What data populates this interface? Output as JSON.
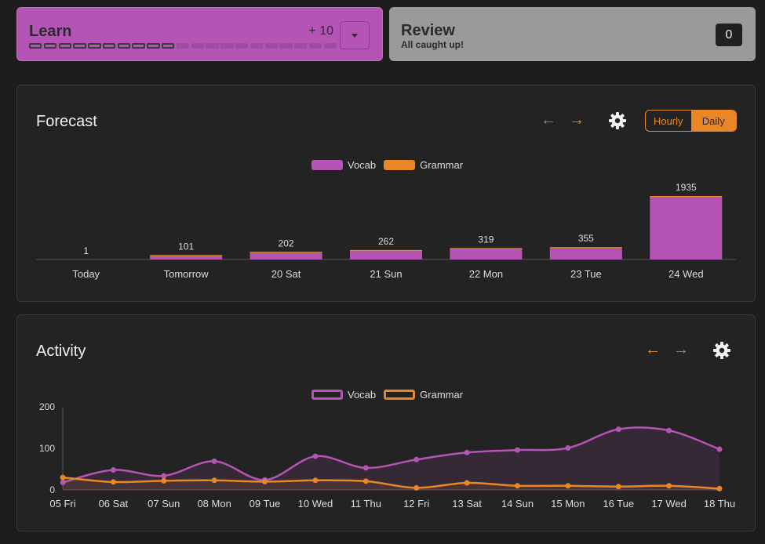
{
  "learn": {
    "title": "Learn",
    "count": "+ 10",
    "segments_total": 21,
    "segments_done": 10
  },
  "review": {
    "title": "Review",
    "subtitle": "All caught up!",
    "count": "0"
  },
  "forecast": {
    "title": "Forecast",
    "toggle": {
      "hourly": "Hourly",
      "daily": "Daily",
      "selected": "Daily"
    },
    "legend": {
      "vocab": "Vocab",
      "grammar": "Grammar"
    }
  },
  "activity": {
    "title": "Activity",
    "legend": {
      "vocab": "Vocab",
      "grammar": "Grammar"
    }
  },
  "colors": {
    "vocab": "#b455b6",
    "grammar": "#e98726"
  },
  "chart_data": [
    {
      "id": "forecast",
      "type": "bar",
      "title": "Forecast",
      "categories": [
        "Today",
        "Tomorrow",
        "20 Sat",
        "21 Sun",
        "22 Mon",
        "23 Tue",
        "24 Wed"
      ],
      "totals": [
        1,
        101,
        202,
        262,
        319,
        355,
        1935
      ],
      "series": [
        {
          "name": "Vocab",
          "values": [
            1,
            98,
            197,
            255,
            310,
            343,
            1900
          ]
        },
        {
          "name": "Grammar",
          "values": [
            0,
            3,
            5,
            7,
            9,
            12,
            35
          ]
        }
      ],
      "stacked": true,
      "ylim": [
        0,
        1935
      ]
    },
    {
      "id": "activity",
      "type": "area",
      "title": "Activity",
      "categories": [
        "05 Fri",
        "06 Sat",
        "07 Sun",
        "08 Mon",
        "09 Tue",
        "10 Wed",
        "11 Thu",
        "12 Fri",
        "13 Sat",
        "14 Sun",
        "15 Mon",
        "16 Tue",
        "17 Wed",
        "18 Thu"
      ],
      "series": [
        {
          "name": "Vocab",
          "values": [
            18,
            48,
            34,
            69,
            24,
            81,
            53,
            73,
            90,
            96,
            101,
            146,
            143,
            98
          ]
        },
        {
          "name": "Grammar",
          "values": [
            30,
            19,
            22,
            23,
            20,
            23,
            21,
            5,
            17,
            10,
            10,
            8,
            10,
            3
          ]
        }
      ],
      "yticks": [
        0,
        100,
        200
      ],
      "ylim": [
        0,
        200
      ]
    }
  ]
}
